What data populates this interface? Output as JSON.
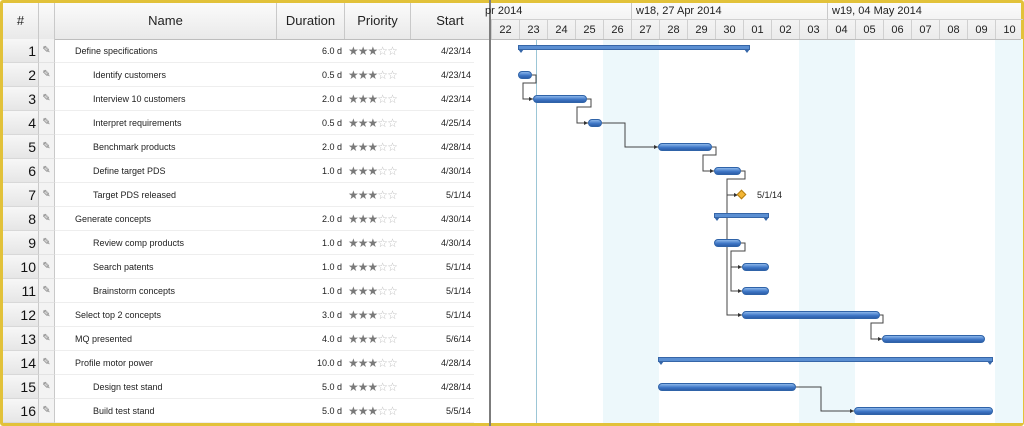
{
  "grid": {
    "headers": {
      "num": "#",
      "name": "Name",
      "duration": "Duration",
      "priority": "Priority",
      "start": "Start"
    },
    "rows": [
      {
        "num": "1",
        "name": "Define specifications",
        "indent": 0,
        "duration": "6.0 d",
        "stars": 3,
        "start": "4/23/14"
      },
      {
        "num": "2",
        "name": "Identify customers",
        "indent": 1,
        "duration": "0.5 d",
        "stars": 3,
        "start": "4/23/14"
      },
      {
        "num": "3",
        "name": "Interview 10 customers",
        "indent": 1,
        "duration": "2.0 d",
        "stars": 3,
        "start": "4/23/14"
      },
      {
        "num": "4",
        "name": "Interpret requirements",
        "indent": 1,
        "duration": "0.5 d",
        "stars": 3,
        "start": "4/25/14"
      },
      {
        "num": "5",
        "name": "Benchmark products",
        "indent": 1,
        "duration": "2.0 d",
        "stars": 3,
        "start": "4/28/14"
      },
      {
        "num": "6",
        "name": "Define target PDS",
        "indent": 1,
        "duration": "1.0 d",
        "stars": 3,
        "start": "4/30/14"
      },
      {
        "num": "7",
        "name": "Target PDS released",
        "indent": 1,
        "duration": "",
        "stars": 3,
        "start": "5/1/14"
      },
      {
        "num": "8",
        "name": "Generate concepts",
        "indent": 0,
        "duration": "2.0 d",
        "stars": 3,
        "start": "4/30/14"
      },
      {
        "num": "9",
        "name": "Review comp products",
        "indent": 1,
        "duration": "1.0 d",
        "stars": 3,
        "start": "4/30/14"
      },
      {
        "num": "10",
        "name": "Search patents",
        "indent": 1,
        "duration": "1.0 d",
        "stars": 3,
        "start": "5/1/14"
      },
      {
        "num": "11",
        "name": "Brainstorm concepts",
        "indent": 1,
        "duration": "1.0 d",
        "stars": 3,
        "start": "5/1/14"
      },
      {
        "num": "12",
        "name": "Select top 2 concepts",
        "indent": 0,
        "duration": "3.0 d",
        "stars": 3,
        "start": "5/1/14"
      },
      {
        "num": "13",
        "name": "MQ presented",
        "indent": 0,
        "duration": "4.0 d",
        "stars": 3,
        "start": "5/6/14"
      },
      {
        "num": "14",
        "name": "Profile motor power",
        "indent": 0,
        "duration": "10.0 d",
        "stars": 3,
        "start": "4/28/14"
      },
      {
        "num": "15",
        "name": "Design test stand",
        "indent": 1,
        "duration": "5.0 d",
        "stars": 3,
        "start": "4/28/14"
      },
      {
        "num": "16",
        "name": "Build test stand",
        "indent": 1,
        "duration": "5.0 d",
        "stars": 3,
        "start": "5/5/14"
      }
    ]
  },
  "timeline": {
    "weeks": [
      "pr 2014",
      "w18, 27 Apr 2014",
      "w19, 04 May 2014"
    ],
    "days": [
      "22",
      "23",
      "24",
      "25",
      "26",
      "27",
      "28",
      "29",
      "30",
      "01",
      "02",
      "03",
      "04",
      "05",
      "06",
      "07",
      "08",
      "09",
      "10"
    ],
    "weekend_day_indices": [
      4,
      5,
      11,
      12,
      18
    ],
    "milestone_label": "5/1/14",
    "colors": {
      "bar": "#3c74c4",
      "weekend": "#edf8fb",
      "milestone": "#f3b635",
      "border": "#e2c23a"
    }
  }
}
